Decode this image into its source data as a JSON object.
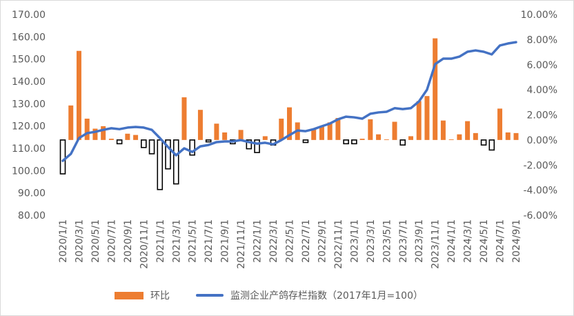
{
  "chart_data": {
    "type": "bar+line",
    "title": "",
    "colors": {
      "bar_positive": "#ED7D31",
      "bar_negative_fill": "#FFFFFF",
      "bar_negative_border": "#000000",
      "line": "#4472C4"
    },
    "left_axis": {
      "range": [
        80,
        170
      ],
      "step": 10,
      "ticks": [
        "80.00",
        "90.00",
        "100.00",
        "110.00",
        "120.00",
        "130.00",
        "140.00",
        "150.00",
        "160.00",
        "170.00"
      ]
    },
    "right_axis": {
      "range": [
        -6,
        10
      ],
      "step": 2,
      "ticks": [
        "-6.00%",
        "-4.00%",
        "-2.00%",
        "0.00%",
        "2.00%",
        "4.00%",
        "6.00%",
        "8.00%",
        "10.00%"
      ]
    },
    "grid": false,
    "legend_position": "bottom",
    "categories": [
      "2020/1/1",
      "2020/2/1",
      "2020/3/1",
      "2020/4/1",
      "2020/5/1",
      "2020/6/1",
      "2020/7/1",
      "2020/8/1",
      "2020/9/1",
      "2020/10/1",
      "2020/11/1",
      "2020/12/1",
      "2021/1/1",
      "2021/2/1",
      "2021/3/1",
      "2021/4/1",
      "2021/5/1",
      "2021/6/1",
      "2021/7/1",
      "2021/8/1",
      "2021/9/1",
      "2021/10/1",
      "2021/11/1",
      "2021/12/1",
      "2022/1/1",
      "2022/2/1",
      "2022/3/1",
      "2022/4/1",
      "2022/5/1",
      "2022/6/1",
      "2022/7/1",
      "2022/8/1",
      "2022/9/1",
      "2022/10/1",
      "2022/11/1",
      "2022/12/1",
      "2023/1/1",
      "2023/2/1",
      "2023/3/1",
      "2023/4/1",
      "2023/5/1",
      "2023/6/1",
      "2023/7/1",
      "2023/8/1",
      "2023/9/1",
      "2023/10/1",
      "2023/11/1",
      "2023/12/1",
      "2024/1/1",
      "2024/2/1",
      "2024/3/1",
      "2024/4/1",
      "2024/5/1",
      "2024/6/1",
      "2024/7/1",
      "2024/8/1",
      "2024/9/1"
    ],
    "series": [
      {
        "name": "环比",
        "type": "bar",
        "axis": "right",
        "unit": "%",
        "values": [
          -2.7,
          2.75,
          7.1,
          1.7,
          0.9,
          1.1,
          0.1,
          -0.3,
          0.5,
          0.4,
          -0.6,
          -1.1,
          -3.95,
          -2.3,
          -3.5,
          3.4,
          -1.2,
          2.4,
          -0.15,
          1.3,
          0.6,
          -0.3,
          0.8,
          -0.7,
          -1.0,
          0.3,
          -0.4,
          1.7,
          2.6,
          1.4,
          -0.2,
          0.9,
          1.1,
          1.4,
          1.75,
          -0.3,
          -0.3,
          0.1,
          1.65,
          0.45,
          0.05,
          1.45,
          -0.4,
          0.3,
          3.1,
          3.5,
          8.1,
          1.55,
          0.05,
          0.45,
          1.5,
          0.55,
          -0.4,
          -0.8,
          2.5,
          0.6,
          0.55
        ]
      },
      {
        "name": "监测企业产鸽存栏指数（2017年1月=100）",
        "type": "line",
        "axis": "left",
        "values": [
          104.4,
          107.5,
          114.6,
          116.8,
          117.4,
          118.3,
          119.0,
          118.6,
          119.3,
          119.6,
          119.3,
          118.3,
          114.6,
          110.6,
          106.9,
          110.0,
          108.4,
          110.9,
          111.5,
          112.8,
          113.1,
          113.1,
          113.7,
          112.8,
          112.1,
          112.5,
          111.8,
          113.7,
          115.9,
          118.0,
          117.7,
          118.6,
          119.9,
          121.1,
          123.0,
          124.2,
          123.9,
          123.3,
          125.5,
          126.1,
          126.4,
          128.0,
          127.6,
          128.0,
          131.0,
          136.3,
          147.7,
          150.2,
          150.2,
          151.1,
          153.3,
          153.9,
          153.3,
          152.1,
          156.1,
          157.0,
          157.6
        ]
      }
    ]
  },
  "legend": {
    "bar_label": "环比",
    "line_label": "监测企业产鸽存栏指数（2017年1月=100）"
  }
}
